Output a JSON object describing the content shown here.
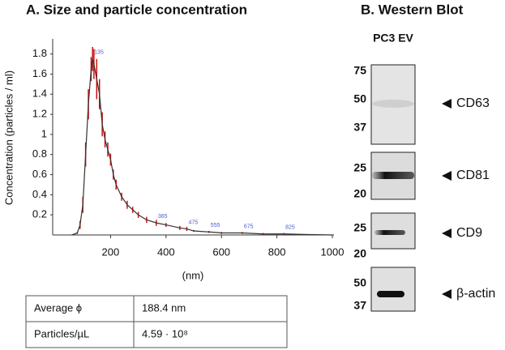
{
  "chart_data": {
    "type": "line",
    "title": "A. Size and particle concentration",
    "ylabel": "Concentration (particles / ml)",
    "xlabel": "(nm)",
    "x": [
      60,
      80,
      90,
      100,
      110,
      120,
      130,
      135,
      140,
      150,
      160,
      170,
      180,
      190,
      200,
      210,
      220,
      240,
      260,
      280,
      300,
      330,
      365,
      400,
      450,
      475,
      500,
      555,
      600,
      675,
      750,
      825,
      900,
      1000
    ],
    "series": [
      {
        "name": "Concentration",
        "color": "#333333",
        "error_color": "#cc1111",
        "values": [
          0,
          0.02,
          0.1,
          0.3,
          0.8,
          1.3,
          1.65,
          1.75,
          1.7,
          1.55,
          1.4,
          1.1,
          0.95,
          0.85,
          0.75,
          0.6,
          0.5,
          0.38,
          0.3,
          0.25,
          0.2,
          0.15,
          0.12,
          0.1,
          0.07,
          0.06,
          0.04,
          0.03,
          0.02,
          0.02,
          0.01,
          0.01,
          0.005,
          0
        ],
        "errors": [
          0,
          0.01,
          0.04,
          0.08,
          0.12,
          0.15,
          0.12,
          0.12,
          0.15,
          0.2,
          0.15,
          0.12,
          0.08,
          0.07,
          0.06,
          0.05,
          0.05,
          0.04,
          0.04,
          0.03,
          0.03,
          0.03,
          0.03,
          0.02,
          0.02,
          0.02,
          0.01,
          0.01,
          0.01,
          0.01,
          0.01,
          0.01,
          0,
          0
        ]
      }
    ],
    "peaks": [
      {
        "value": 135,
        "label": "135"
      },
      {
        "value": 365,
        "label": "365"
      },
      {
        "value": 475,
        "label": "475"
      },
      {
        "value": 555,
        "label": "555"
      },
      {
        "value": 675,
        "label": "675"
      },
      {
        "value": 825,
        "label": "825"
      }
    ],
    "xlim": [
      0,
      1000
    ],
    "xticks": [
      200,
      400,
      600,
      800,
      1000
    ],
    "ylim": [
      0,
      1.95
    ],
    "yticks": [
      0.2,
      0.4,
      0.6,
      0.8,
      1,
      1.2,
      1.4,
      1.6,
      1.8
    ]
  },
  "table": {
    "rows": [
      [
        "Average ϕ",
        "188.4 nm"
      ],
      [
        "Particles/µL",
        "4.59 · 10⁸"
      ]
    ]
  },
  "western_blot": {
    "title": "B. Western Blot",
    "sample": "PC3 EV",
    "panels": [
      {
        "markers": [
          "75",
          "50",
          "37"
        ],
        "protein": "CD63"
      },
      {
        "markers": [
          "25",
          "20"
        ],
        "protein": "CD81"
      },
      {
        "markers": [
          "25",
          "20"
        ],
        "protein": "CD9"
      },
      {
        "markers": [
          "50",
          "37"
        ],
        "protein": "β-actin"
      }
    ]
  }
}
